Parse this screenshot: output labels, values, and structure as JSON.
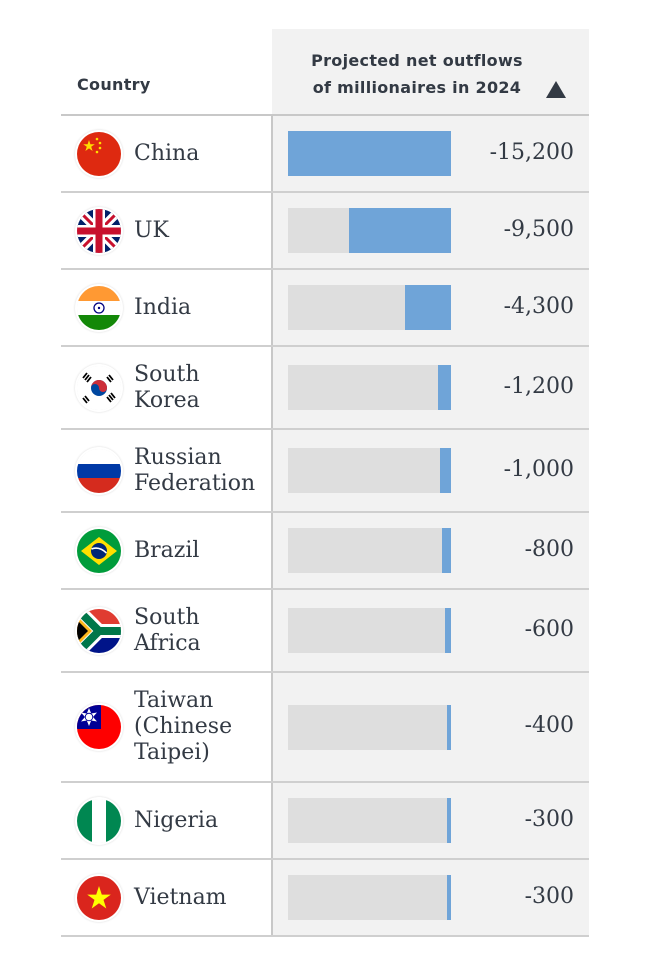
{
  "header": {
    "country": "Country",
    "metric_line1": "Projected net outflows",
    "metric_line2": "of millionaires in 2024"
  },
  "chart_data": {
    "type": "bar",
    "orientation": "horizontal",
    "xlabel": "Country",
    "ylabel": "Projected net outflows of millionaires in 2024",
    "sorted": "ascending",
    "categories": [
      "China",
      "UK",
      "India",
      "South Korea",
      "Russian Federation",
      "Brazil",
      "South Africa",
      "Taiwan (Chinese Taipei)",
      "Nigeria",
      "Vietnam"
    ],
    "values": [
      -15200,
      -9500,
      -4300,
      -1200,
      -1000,
      -800,
      -600,
      -400,
      -300,
      -300
    ],
    "value_labels": [
      "-15,200",
      "-9,500",
      "-4,300",
      "-1,200",
      "-1,000",
      "-800",
      "-600",
      "-400",
      "-300",
      "-300"
    ],
    "display_lines": [
      [
        "China"
      ],
      [
        "UK"
      ],
      [
        "India"
      ],
      [
        "South",
        "Korea"
      ],
      [
        "Russian",
        "Federation"
      ],
      [
        "Brazil"
      ],
      [
        "South",
        "Africa"
      ],
      [
        "Taiwan",
        "(Chinese",
        "Taipei)"
      ],
      [
        "Nigeria"
      ],
      [
        "Vietnam"
      ]
    ],
    "flag_icons": [
      "china-flag-icon",
      "uk-flag-icon",
      "india-flag-icon",
      "south-korea-flag-icon",
      "russia-flag-icon",
      "brazil-flag-icon",
      "south-africa-flag-icon",
      "taiwan-flag-icon",
      "nigeria-flag-icon",
      "vietnam-flag-icon"
    ],
    "bar_color": "#6fa4d8",
    "track_color": "#dedede",
    "xlim": [
      -15200,
      0
    ]
  }
}
